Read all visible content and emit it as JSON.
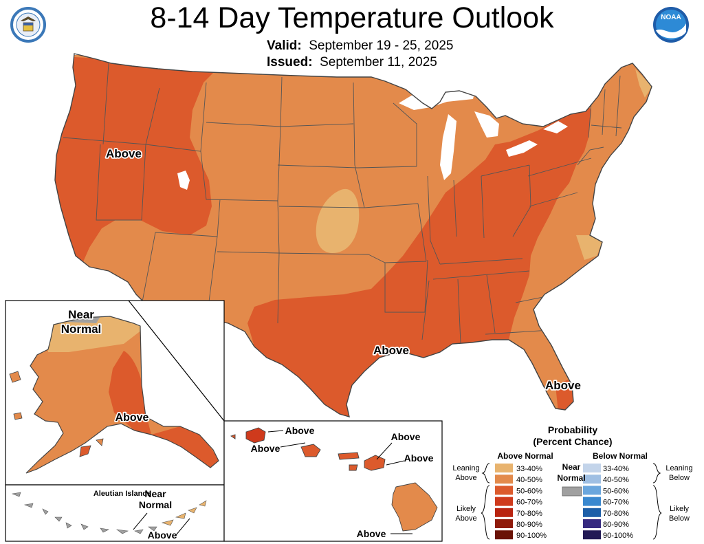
{
  "header": {
    "title": "8-14 Day Temperature Outlook",
    "valid_label": "Valid:",
    "valid_value": "September 19 - 25, 2025",
    "issued_label": "Issued:",
    "issued_value": "September 11, 2025",
    "noaa_logo_text": "NOAA"
  },
  "map": {
    "labels": {
      "west_above": "Above",
      "texas_above": "Above",
      "florida_above": "Above",
      "alaska_near": "Near",
      "alaska_normal": "Normal",
      "alaska_above": "Above",
      "aleutian_title": "Aleutian Islands",
      "aleutian_near": "Near",
      "aleutian_normal": "Normal",
      "aleutian_above": "Above",
      "hawaii_kauai_above": "Above",
      "hawaii_oahu_above": "Above",
      "hawaii_maui_above": "Above",
      "hawaii_maui2_above": "Above",
      "hawaii_big_above": "Above"
    }
  },
  "legend": {
    "title_line1": "Probability",
    "title_line2": "(Percent Chance)",
    "above_header": "Above Normal",
    "below_header": "Below Normal",
    "near_line1": "Near",
    "near_line2": "Normal",
    "leaning_above_1": "Leaning",
    "leaning_above_2": "Above",
    "likely_above_1": "Likely",
    "likely_above_2": "Above",
    "leaning_below_1": "Leaning",
    "leaning_below_2": "Below",
    "likely_below_1": "Likely",
    "likely_below_2": "Below",
    "above_bins": [
      {
        "label": "33-40%",
        "color": "#e8b36e"
      },
      {
        "label": "40-50%",
        "color": "#e38a4b"
      },
      {
        "label": "50-60%",
        "color": "#dc5a2c"
      },
      {
        "label": "60-70%",
        "color": "#cf3a1c"
      },
      {
        "label": "70-80%",
        "color": "#b92410"
      },
      {
        "label": "80-90%",
        "color": "#8f1a0a"
      },
      {
        "label": "90-100%",
        "color": "#6a1206"
      }
    ],
    "below_bins": [
      {
        "label": "33-40%",
        "color": "#c3d4ea"
      },
      {
        "label": "40-50%",
        "color": "#9fbfe3"
      },
      {
        "label": "50-60%",
        "color": "#6aa6dd"
      },
      {
        "label": "60-70%",
        "color": "#3a88cf"
      },
      {
        "label": "70-80%",
        "color": "#1d5fa8"
      },
      {
        "label": "80-90%",
        "color": "#362a80"
      },
      {
        "label": "90-100%",
        "color": "#221a55"
      }
    ],
    "near_color": "#a0a0a0"
  }
}
